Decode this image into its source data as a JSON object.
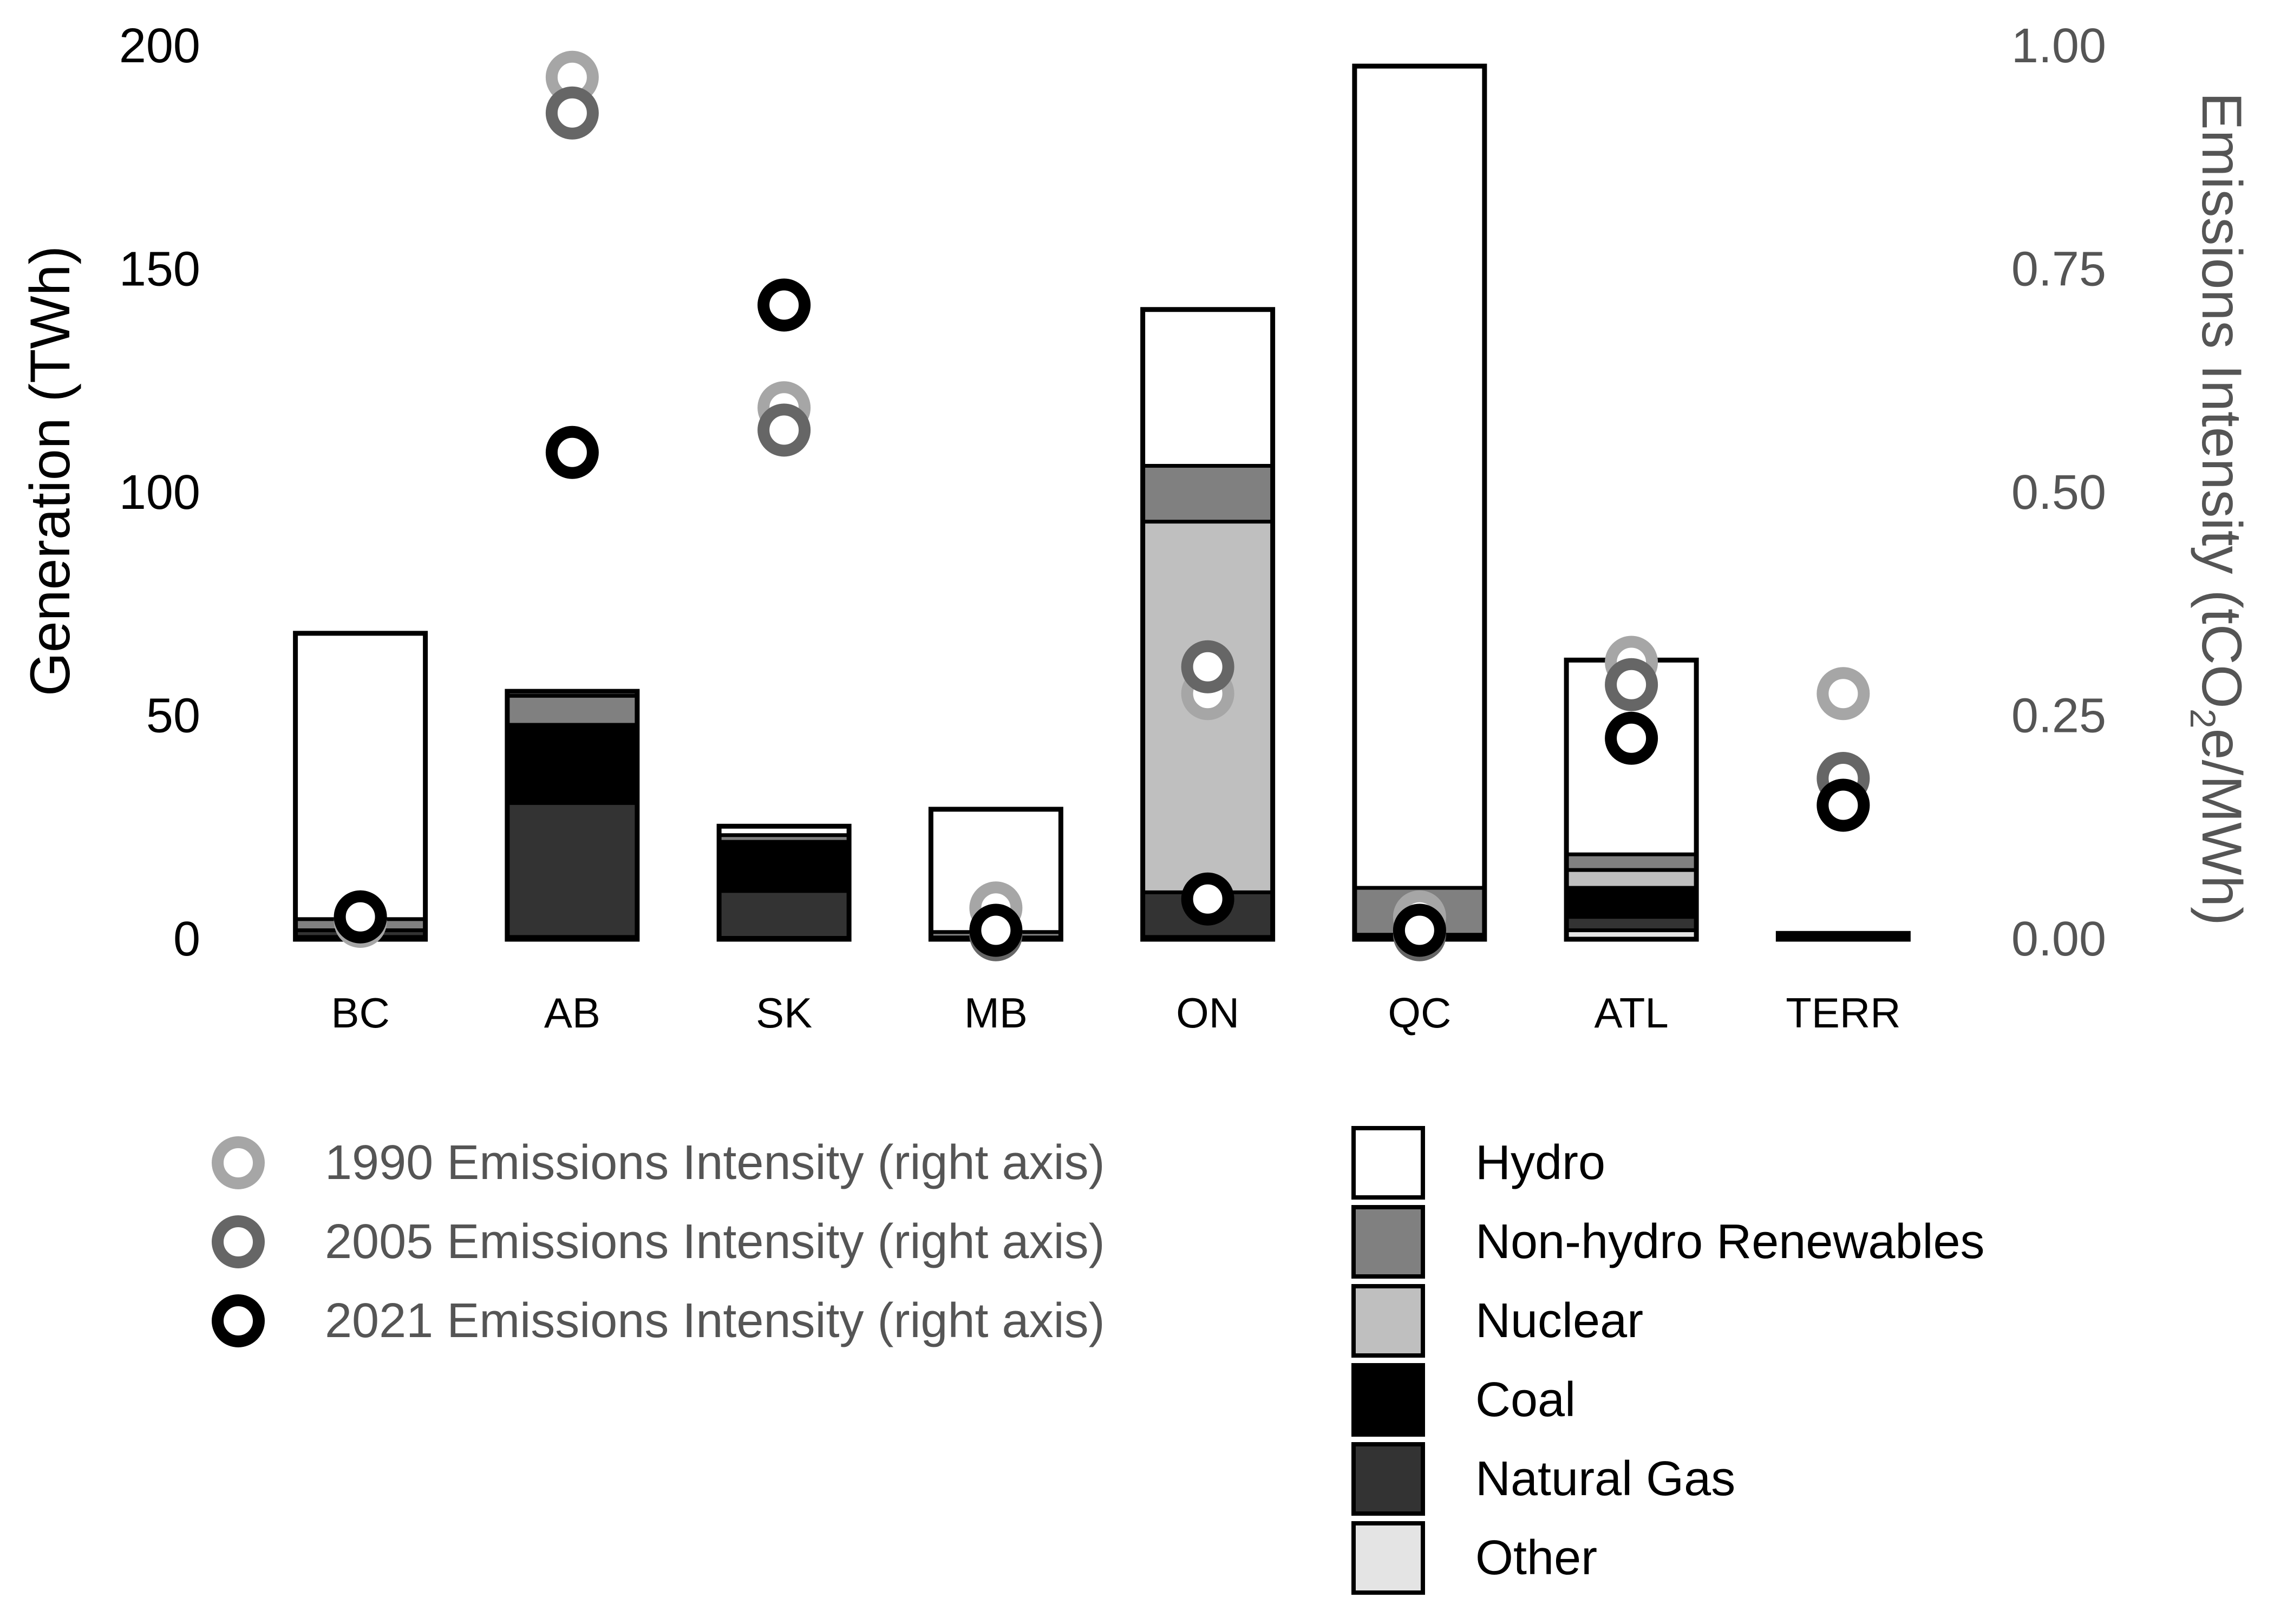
{
  "chart_data": {
    "type": "bar",
    "stacked": true,
    "categories": [
      "BC",
      "AB",
      "SK",
      "MB",
      "ON",
      "QC",
      "ATL",
      "TERR"
    ],
    "series": [
      {
        "name": "Other",
        "color": "#e4e4e4",
        "values": [
          0.5,
          0.5,
          0.3,
          0.2,
          0.5,
          0.4,
          2,
          0.2
        ]
      },
      {
        "name": "Natural Gas",
        "color": "#333333",
        "values": [
          1.5,
          30,
          10.5,
          0.1,
          10,
          0.6,
          3,
          0.3
        ]
      },
      {
        "name": "Coal",
        "color": "#000000",
        "values": [
          0,
          17.5,
          11,
          0.1,
          0,
          0,
          6.5,
          0
        ]
      },
      {
        "name": "Nuclear",
        "color": "#bfbfbf",
        "values": [
          0,
          0,
          0,
          0,
          83,
          0,
          4,
          0
        ]
      },
      {
        "name": "Non-hydro Renewables",
        "color": "#808080",
        "values": [
          2.5,
          6.5,
          1.5,
          1.2,
          12.5,
          10.5,
          3.5,
          0.3
        ]
      },
      {
        "name": "Hydro",
        "color": "#ffffff",
        "values": [
          64,
          1,
          2,
          27.5,
          35,
          184,
          43.5,
          0.5
        ]
      }
    ],
    "intensity": [
      {
        "name": "1990 Emissions Intensity (right axis)",
        "color": "#a6a6a6",
        "values": [
          0.02,
          0.965,
          0.595,
          0.035,
          0.275,
          0.025,
          0.31,
          0.275
        ]
      },
      {
        "name": "2005 Emissions Intensity (right axis)",
        "color": "#666666",
        "values": [
          0.025,
          0.925,
          0.57,
          0.005,
          0.305,
          0.005,
          0.285,
          0.18
        ]
      },
      {
        "name": "2021 Emissions Intensity (right axis)",
        "color": "#000000",
        "values": [
          0.025,
          0.545,
          0.71,
          0.01,
          0.045,
          0.01,
          0.225,
          0.15
        ]
      }
    ],
    "ylabel": "Generation  (TWh)",
    "ylim": [
      0,
      200
    ],
    "yticks": [
      "0",
      "50",
      "100",
      "150",
      "200"
    ],
    "y2label_main": "Emissions Intensity  (tCO",
    "y2label_sub": "2",
    "y2label_end": "e/MWh)",
    "y2lim": [
      0,
      1
    ],
    "y2ticks": [
      "0.00",
      "0.25",
      "0.50",
      "0.75",
      "1.00"
    ],
    "grid": false,
    "legend_placement": "bottom",
    "legend_bars_order": [
      "Hydro",
      "Non-hydro Renewables",
      "Nuclear",
      "Coal",
      "Natural Gas",
      "Other"
    ]
  }
}
